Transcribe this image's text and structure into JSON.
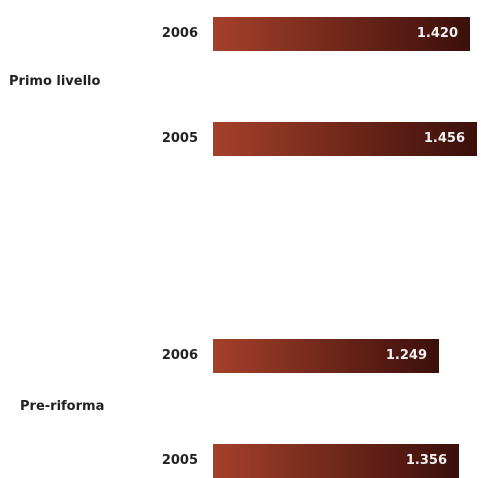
{
  "chart_data": {
    "type": "bar",
    "orientation": "horizontal",
    "groups": [
      {
        "name": "Primo livello",
        "bars": [
          {
            "year": "2006",
            "value": 1420,
            "label": "1.420"
          },
          {
            "year": "2005",
            "value": 1456,
            "label": "1.456"
          }
        ]
      },
      {
        "name": "Pre-riforma",
        "bars": [
          {
            "year": "2006",
            "value": 1249,
            "label": "1.249"
          },
          {
            "year": "2005",
            "value": 1356,
            "label": "1.356"
          }
        ]
      }
    ],
    "xlim": [
      0,
      1456
    ],
    "grid": false,
    "legend": "none",
    "colors": {
      "bar_start": "#a5402a",
      "bar_end": "#3b0f0b",
      "value_text": "#f2f2f2",
      "label_text": "#222222"
    }
  }
}
